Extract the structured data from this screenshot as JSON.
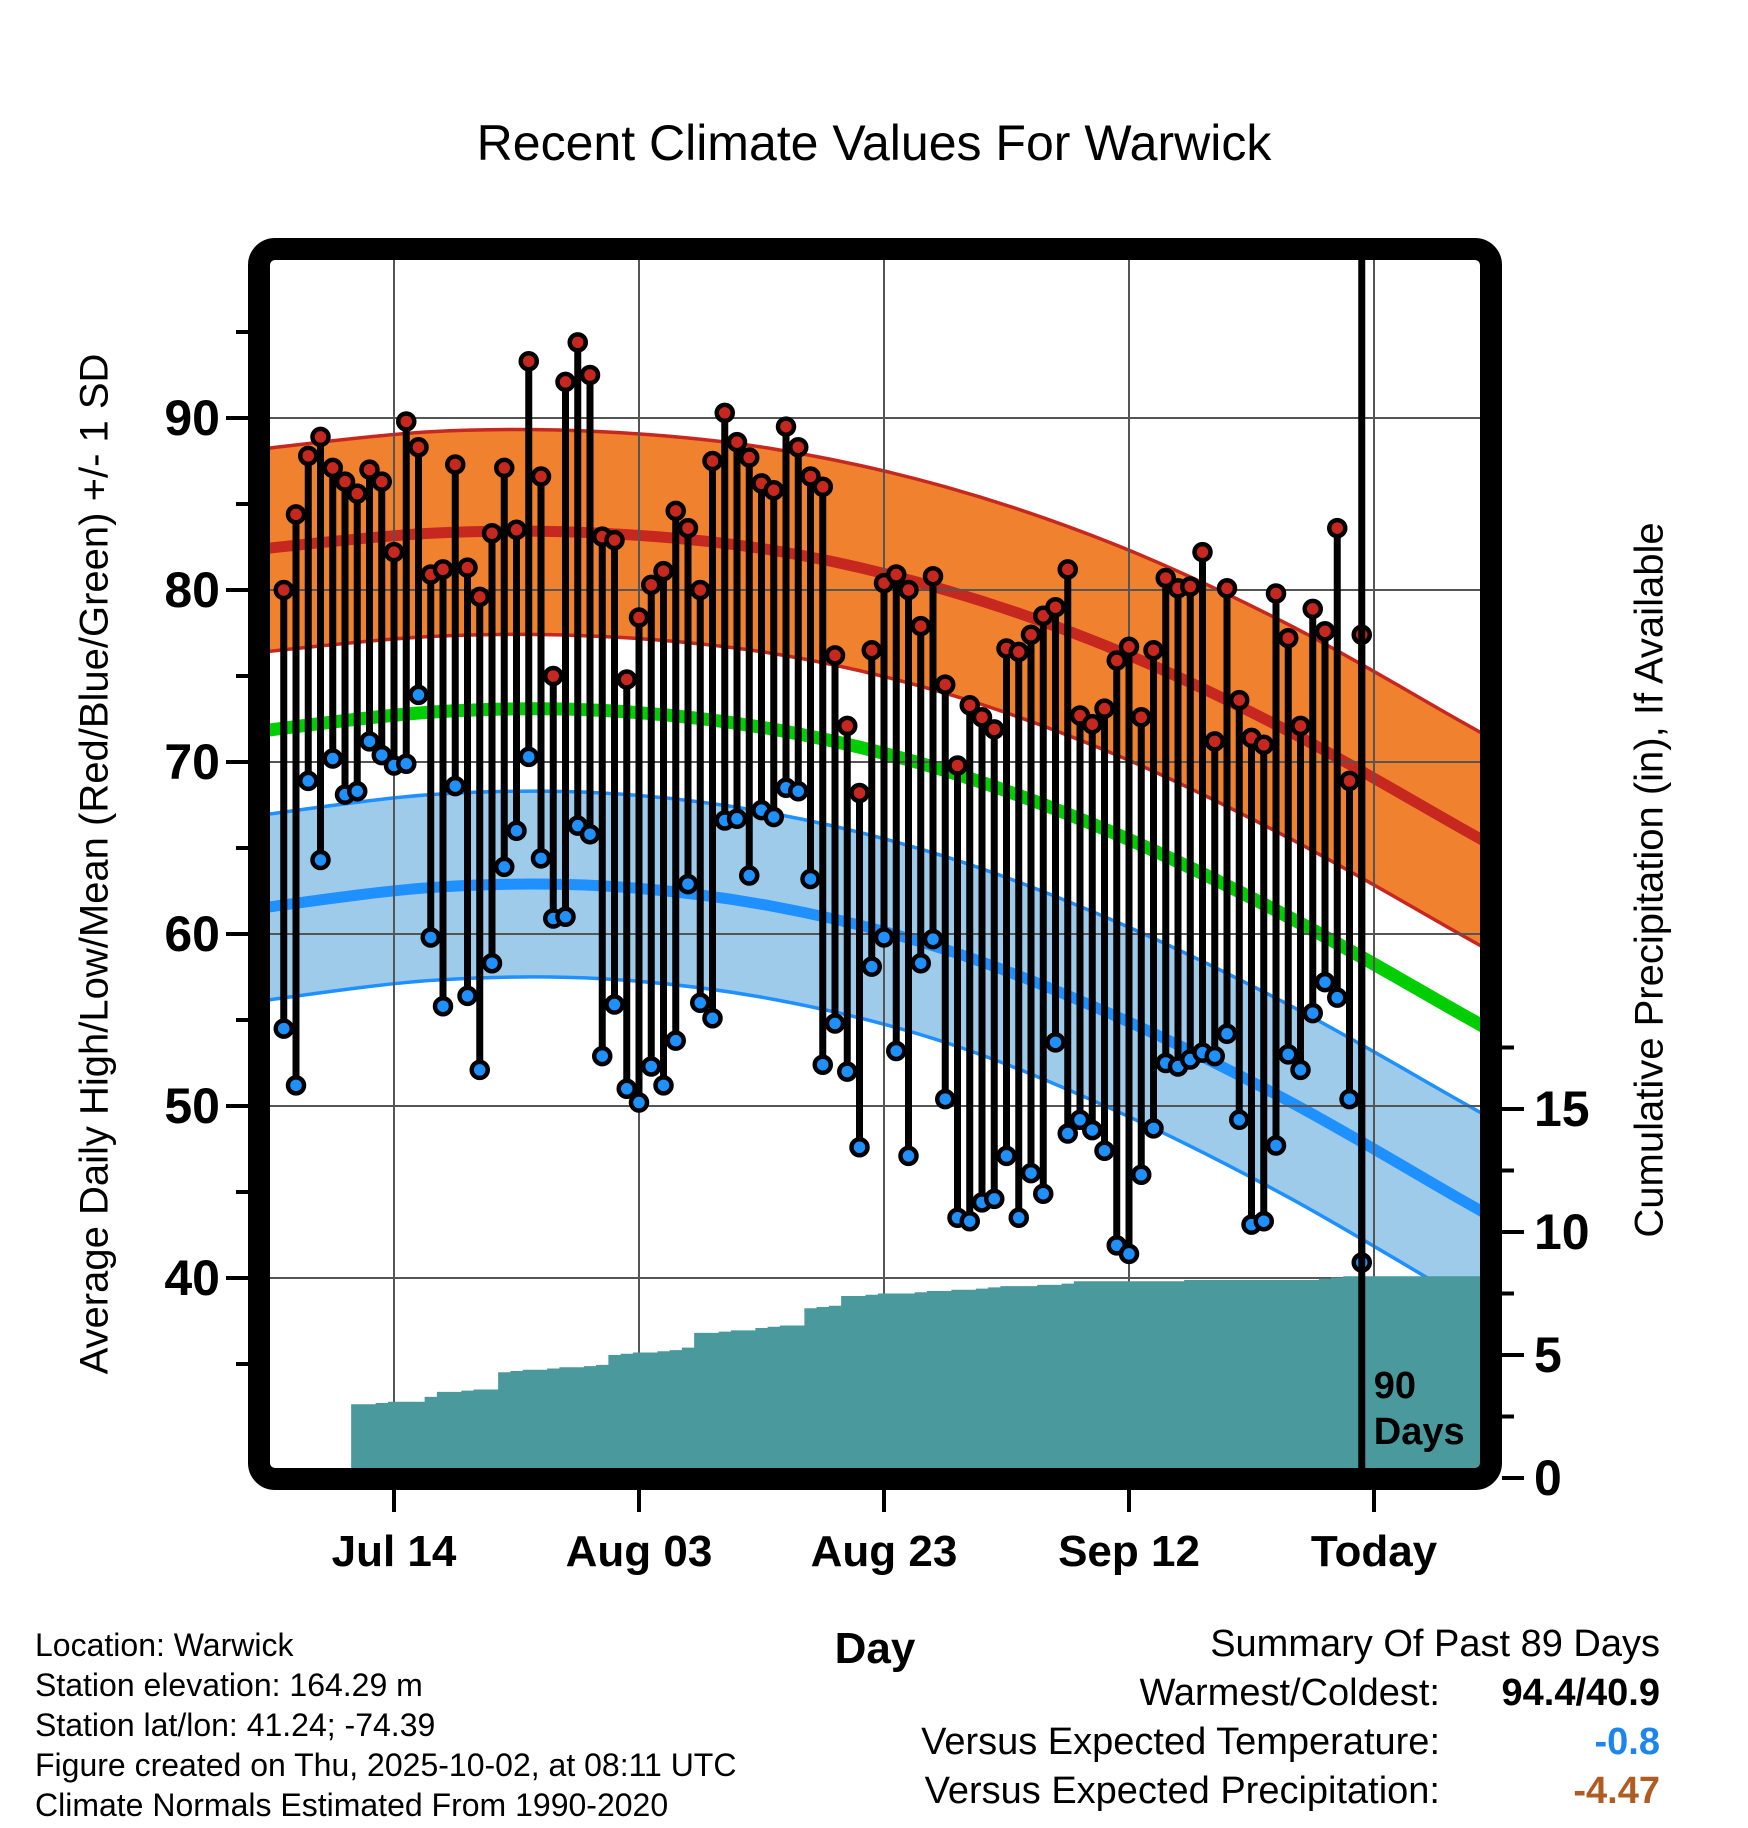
{
  "title": "Recent Climate Values For Warwick",
  "axes": {
    "left_title": "Average Daily High/Low/Mean (Red/Blue/Green) +/- 1 SD",
    "right_title": "Cumulative Precipitation (in), If Available",
    "x_title": "Day"
  },
  "annotations": {
    "ninety_line1": "90",
    "ninety_line2": "Days"
  },
  "footer_left": {
    "lines": [
      "Location: Warwick",
      "Station elevation: 164.29 m",
      "Station lat/lon: 41.24; -74.39",
      "Figure created on Thu, 2025-10-02, at 08:11 UTC",
      "Climate Normals Estimated From 1990-2020"
    ]
  },
  "summary": {
    "title": "Summary Of Past 89 Days",
    "rows": [
      {
        "label": "Warmest/Coldest:",
        "value": "94.4/40.9",
        "color": "black"
      },
      {
        "label": "Versus Expected Temperature:",
        "value": "-0.8",
        "color": "#1C86EE"
      },
      {
        "label": "Versus Expected Precipitation:",
        "value": "-4.47",
        "color": "#AF5B22"
      }
    ]
  },
  "colors": {
    "high_band_fill": "#F0812F",
    "high_line": "#C62820",
    "mean_line": "#00CE00",
    "low_band_fill": "#9FCBEA",
    "low_line": "#1E90FF",
    "precip_fill": "#4A999D",
    "dot_high": "#C62820",
    "dot_low": "#1E90FF",
    "stem": "#000000",
    "grid": "#555555",
    "summary_temp_value": "#1C86EE",
    "summary_precip_value": "#AF5B22"
  },
  "chart_data": {
    "type": "combo",
    "description": "Daily high/low temperature stems with climatological mean/+-1SD bands and cumulative precipitation step area",
    "title": "Recent Climate Values For Warwick",
    "xlabel": "Day",
    "ylabel_left": "Average Daily High/Low/Mean (Red/Blue/Green) +/- 1 SD",
    "ylabel_right": "Cumulative Precipitation (in), If Available",
    "left_axis_ticks": [
      90,
      80,
      70,
      60,
      50,
      40
    ],
    "left_axis_minor_ticks": [
      95,
      85,
      75,
      65,
      55,
      45,
      35
    ],
    "right_axis_ticks": [
      15,
      10,
      5,
      0
    ],
    "right_axis_minor_ticks": [
      2.5,
      7.5,
      12.5,
      17.5
    ],
    "x_ticks": [
      {
        "label": "Jul 14",
        "day_index": 9
      },
      {
        "label": "Aug 03",
        "day_index": 29
      },
      {
        "label": "Aug 23",
        "day_index": 49
      },
      {
        "label": "Sep 12",
        "day_index": 69
      },
      {
        "label": "Today",
        "day_index": 89
      }
    ],
    "ninety_day_marker_day_index": 88,
    "days": [
      "Jul 05",
      "Jul 06",
      "Jul 07",
      "Jul 08",
      "Jul 09",
      "Jul 10",
      "Jul 11",
      "Jul 12",
      "Jul 13",
      "Jul 14",
      "Jul 15",
      "Jul 16",
      "Jul 17",
      "Jul 18",
      "Jul 19",
      "Jul 20",
      "Jul 21",
      "Jul 22",
      "Jul 23",
      "Jul 24",
      "Jul 25",
      "Jul 26",
      "Jul 27",
      "Jul 28",
      "Jul 29",
      "Jul 30",
      "Jul 31",
      "Aug 01",
      "Aug 02",
      "Aug 03",
      "Aug 04",
      "Aug 05",
      "Aug 06",
      "Aug 07",
      "Aug 08",
      "Aug 09",
      "Aug 10",
      "Aug 11",
      "Aug 12",
      "Aug 13",
      "Aug 14",
      "Aug 15",
      "Aug 16",
      "Aug 17",
      "Aug 18",
      "Aug 19",
      "Aug 20",
      "Aug 21",
      "Aug 22",
      "Aug 23",
      "Aug 24",
      "Aug 25",
      "Aug 26",
      "Aug 27",
      "Aug 28",
      "Aug 29",
      "Aug 30",
      "Aug 31",
      "Sep 01",
      "Sep 02",
      "Sep 03",
      "Sep 04",
      "Sep 05",
      "Sep 06",
      "Sep 07",
      "Sep 08",
      "Sep 09",
      "Sep 10",
      "Sep 11",
      "Sep 12",
      "Sep 13",
      "Sep 14",
      "Sep 15",
      "Sep 16",
      "Sep 17",
      "Sep 18",
      "Sep 19",
      "Sep 20",
      "Sep 21",
      "Sep 22",
      "Sep 23",
      "Sep 24",
      "Sep 25",
      "Sep 26",
      "Sep 27",
      "Sep 28",
      "Sep 29",
      "Sep 30",
      "Oct 01"
    ],
    "daily_high": [
      80.0,
      84.4,
      87.8,
      88.9,
      87.1,
      86.3,
      85.6,
      87.0,
      86.3,
      82.2,
      89.8,
      88.3,
      80.9,
      81.2,
      87.3,
      81.3,
      79.6,
      83.3,
      87.1,
      83.5,
      93.3,
      86.6,
      75.0,
      92.1,
      94.4,
      92.5,
      83.1,
      82.9,
      74.8,
      78.4,
      80.3,
      81.1,
      84.6,
      83.6,
      80.0,
      87.5,
      90.3,
      88.6,
      87.7,
      86.2,
      85.8,
      89.5,
      88.3,
      86.6,
      86.0,
      76.2,
      72.1,
      68.2,
      76.5,
      80.4,
      80.9,
      80.0,
      77.9,
      80.8,
      74.5,
      69.8,
      73.3,
      72.6,
      71.9,
      76.6,
      76.4,
      77.4,
      78.5,
      79.0,
      81.2,
      72.7,
      72.2,
      73.1,
      75.9,
      76.7,
      72.6,
      76.5,
      80.7,
      80.1,
      80.2,
      82.2,
      71.2,
      80.1,
      73.6,
      71.4,
      71.0,
      79.8,
      77.2,
      72.1,
      78.9,
      77.6,
      83.6,
      68.9,
      77.4
    ],
    "daily_low": [
      54.5,
      51.2,
      68.9,
      64.3,
      70.2,
      68.1,
      68.3,
      71.2,
      70.4,
      69.8,
      69.9,
      73.9,
      59.8,
      55.8,
      68.6,
      56.4,
      52.1,
      58.3,
      63.9,
      66.0,
      70.3,
      64.4,
      60.9,
      61.0,
      66.3,
      65.8,
      52.9,
      55.9,
      51.0,
      50.2,
      52.3,
      51.2,
      53.8,
      62.9,
      56.0,
      55.1,
      66.6,
      66.7,
      63.4,
      67.2,
      66.8,
      68.5,
      68.3,
      63.2,
      52.4,
      54.8,
      52.0,
      47.6,
      58.1,
      59.8,
      53.2,
      47.1,
      58.3,
      59.7,
      50.4,
      43.5,
      43.3,
      44.4,
      44.6,
      47.1,
      43.5,
      46.1,
      44.9,
      53.7,
      48.4,
      49.2,
      48.6,
      47.4,
      41.9,
      41.4,
      46.0,
      48.7,
      52.5,
      52.3,
      52.7,
      53.1,
      52.9,
      54.2,
      49.2,
      43.1,
      43.3,
      47.7,
      53.0,
      52.1,
      55.4,
      57.2,
      56.3,
      50.4,
      40.9
    ],
    "cumulative_precip_in": [
      0.1,
      0.1,
      0.2,
      0.3,
      0.3,
      0.4,
      3.0,
      3.0,
      3.05,
      3.1,
      3.1,
      3.1,
      3.3,
      3.5,
      3.5,
      3.55,
      3.6,
      3.6,
      4.3,
      4.35,
      4.4,
      4.4,
      4.45,
      4.5,
      4.5,
      4.55,
      4.6,
      5.0,
      5.05,
      5.1,
      5.1,
      5.15,
      5.2,
      5.3,
      5.9,
      5.9,
      5.95,
      6.0,
      6.0,
      6.1,
      6.15,
      6.2,
      6.2,
      6.9,
      6.95,
      7.0,
      7.4,
      7.4,
      7.45,
      7.5,
      7.5,
      7.5,
      7.55,
      7.6,
      7.6,
      7.65,
      7.65,
      7.7,
      7.75,
      7.8,
      7.8,
      7.8,
      7.85,
      7.85,
      7.9,
      8.0,
      8.0,
      8.0,
      8.0,
      8.0,
      8.0,
      8.0,
      8.0,
      8.0,
      8.05,
      8.05,
      8.05,
      8.05,
      8.05,
      8.05,
      8.05,
      8.05,
      8.05,
      8.05,
      8.05,
      8.1,
      8.15,
      8.2,
      8.2
    ],
    "climatology": {
      "day_index": [
        -3,
        12,
        26,
        40,
        54,
        68,
        82,
        96,
        101
      ],
      "high_plus_sd": [
        88.1,
        89.2,
        89.2,
        88.2,
        86.0,
        82.6,
        78.0,
        72.4,
        70.4
      ],
      "high_mean": [
        82.3,
        83.3,
        83.3,
        82.3,
        80.0,
        76.5,
        71.8,
        66.2,
        64.2
      ],
      "high_minus_sd": [
        76.3,
        77.3,
        77.3,
        76.3,
        74.0,
        70.4,
        65.6,
        60.0,
        58.0
      ],
      "mean": [
        71.7,
        72.9,
        73.0,
        71.9,
        69.5,
        65.8,
        61.0,
        55.4,
        53.4
      ],
      "low_plus_sd": [
        66.8,
        68.1,
        68.2,
        67.0,
        64.5,
        60.7,
        55.9,
        50.3,
        48.3
      ],
      "low_mean": [
        61.4,
        62.7,
        62.8,
        61.6,
        59.1,
        55.2,
        50.3,
        44.6,
        42.6
      ],
      "low_minus_sd": [
        56.0,
        57.3,
        57.4,
        56.2,
        53.7,
        49.7,
        44.7,
        38.9,
        36.9
      ]
    },
    "summary": {
      "warmest": 94.4,
      "coldest": 40.9,
      "versus_expected_temperature": -0.8,
      "versus_expected_precipitation": -4.47
    }
  }
}
